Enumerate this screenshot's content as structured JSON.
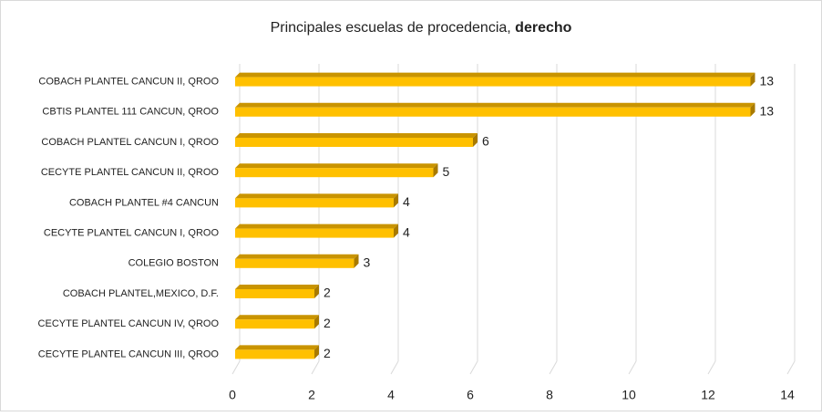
{
  "chart_data": {
    "type": "bar3d",
    "title": "Principales escuelas de procedencia,",
    "title_bold": "derecho",
    "categories": [
      "COBACH PLANTEL CANCUN  II, QROO",
      "CBTIS PLANTEL 111 CANCUN, QROO",
      "COBACH PLANTEL CANCUN I, QROO",
      "CECYTE PLANTEL CANCUN II, QROO",
      "COBACH PLANTEL #4 CANCUN",
      "CECYTE PLANTEL CANCUN I, QROO",
      "COLEGIO BOSTON",
      "COBACH PLANTEL,MEXICO, D.F.",
      "CECYTE PLANTEL CANCUN IV, QROO",
      "CECYTE PLANTEL CANCUN III, QROO"
    ],
    "values": [
      13,
      13,
      6,
      5,
      4,
      4,
      3,
      2,
      2,
      2
    ],
    "color": "#ffc000",
    "xlim": [
      0,
      14
    ],
    "xticks": [
      0,
      2,
      4,
      6,
      8,
      10,
      12,
      14
    ],
    "grid": true
  }
}
